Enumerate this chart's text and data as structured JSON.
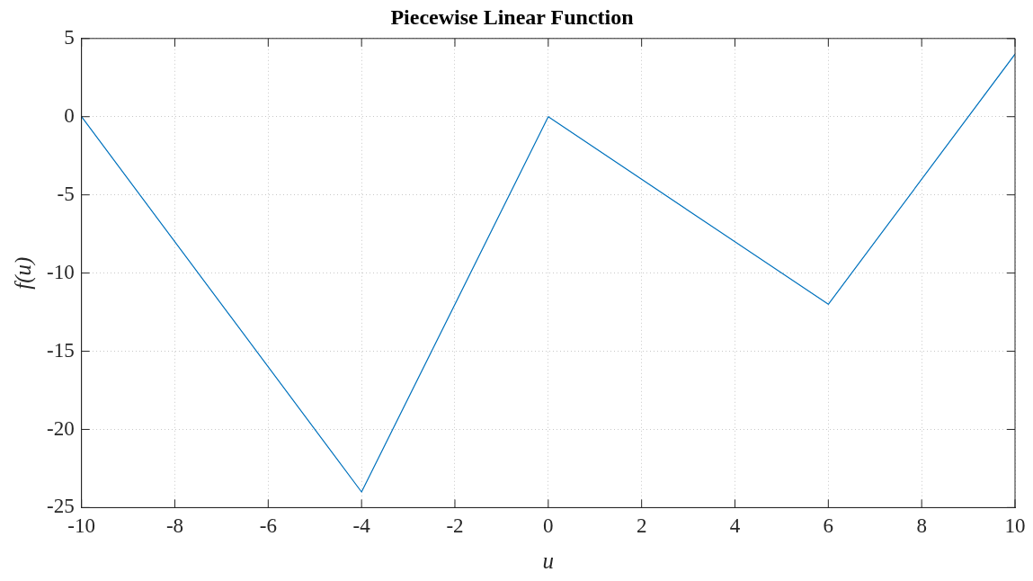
{
  "chart_data": {
    "type": "line",
    "title": "Piecewise Linear Function",
    "xlabel": "u",
    "ylabel": "f(u)",
    "x": [
      -10,
      -4,
      0,
      6,
      10
    ],
    "series": [
      {
        "color": "#0072bd",
        "values": [
          0,
          -24,
          0,
          -12,
          4
        ]
      }
    ],
    "xlim": [
      -10,
      10
    ],
    "xticks": [
      -10,
      -8,
      -6,
      -4,
      -2,
      0,
      2,
      4,
      6,
      8,
      10
    ],
    "ylim": [
      -25,
      5
    ],
    "yticks": [
      -25,
      -20,
      -15,
      -10,
      -5,
      0,
      5
    ],
    "grid": true,
    "legend": false,
    "marker": "none",
    "line_style": "solid"
  }
}
